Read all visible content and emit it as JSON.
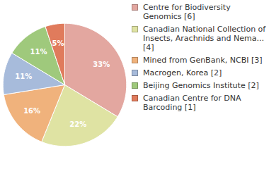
{
  "chart_data": {
    "type": "pie",
    "categories": [
      "Centre for Biodiversity Genomics [6]",
      "Canadian National Collection of Insects, Arachnids and Nema... [4]",
      "Mined from GenBank, NCBI [3]",
      "Macrogen, Korea [2]",
      "Beijing Genomics Institute [2]",
      "Canadian Centre for DNA Barcoding [1]"
    ],
    "values": [
      33,
      22,
      16,
      11,
      11,
      5
    ],
    "value_labels": [
      "33%",
      "22%",
      "16%",
      "11%",
      "11%",
      "5%"
    ],
    "colors": [
      "#e3a7a0",
      "#dfe3a3",
      "#f0b27c",
      "#a7bbdb",
      "#9fc97c",
      "#e07b5c"
    ],
    "data_labels": true,
    "legend": "right"
  }
}
